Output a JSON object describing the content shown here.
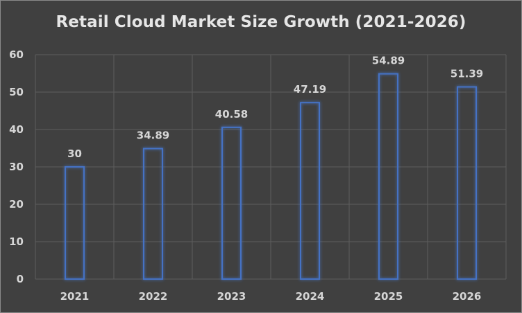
{
  "chart_data": {
    "type": "bar",
    "title": "Retail Cloud Market Size Growth (2021-2026)",
    "categories": [
      "2021",
      "2022",
      "2023",
      "2024",
      "2025",
      "2026"
    ],
    "values": [
      30,
      34.89,
      40.58,
      47.19,
      54.89,
      51.39
    ],
    "data_labels": [
      "30",
      "34.89",
      "40.58",
      "47.19",
      "54.89",
      "51.39"
    ],
    "y_ticks": [
      "0",
      "10",
      "20",
      "30",
      "40",
      "50",
      "60"
    ],
    "ylim": [
      0,
      60
    ],
    "xlabel": "",
    "ylabel": "",
    "grid": true,
    "legend": "none"
  },
  "colors": {
    "background": "#404040",
    "bar_outline": "#4472c4",
    "grid": "#5e5e5e",
    "text": "#d6d6d6"
  }
}
